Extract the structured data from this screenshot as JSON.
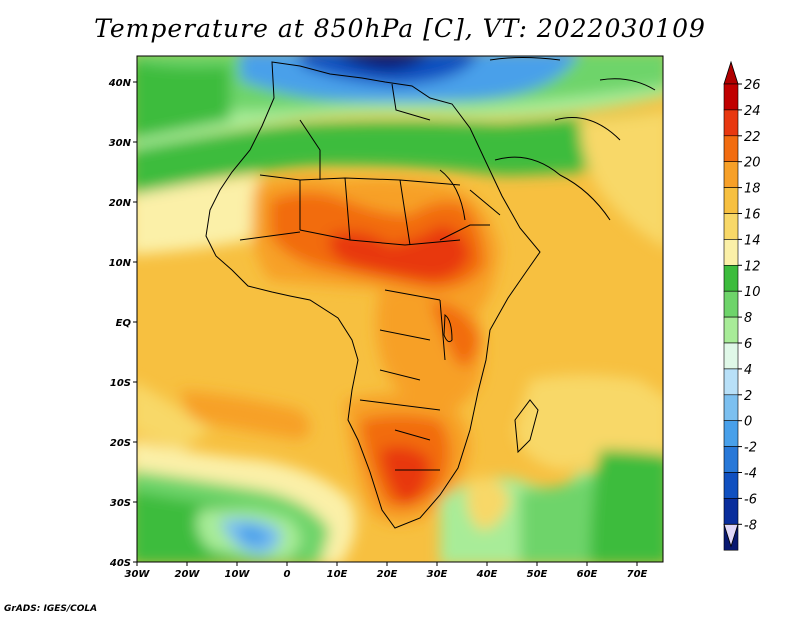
{
  "title": "Temperature at 850hPa [C], VT: 2022030109",
  "credit": "GrADS: IGES/COLA",
  "map": {
    "region": "Africa",
    "variable": "Temperature at 850hPa",
    "units": "C",
    "lon_range": [
      -30,
      75
    ],
    "lat_range": [
      -40,
      45
    ],
    "x_ticks": [
      "30W",
      "20W",
      "10W",
      "0",
      "10E",
      "20E",
      "30E",
      "40E",
      "50E",
      "60E",
      "70E"
    ],
    "y_ticks": [
      "40N",
      "30N",
      "20N",
      "10N",
      "EQ",
      "10S",
      "20S",
      "30S",
      "40S"
    ]
  },
  "legend": {
    "labels": [
      "26",
      "24",
      "22",
      "20",
      "18",
      "16",
      "14",
      "12",
      "10",
      "8",
      "6",
      "4",
      "2",
      "0",
      "-2",
      "-4",
      "-6",
      "-8"
    ],
    "colors": [
      "#c00000",
      "#e83810",
      "#f26c10",
      "#f7a028",
      "#f7c040",
      "#f8d868",
      "#fbf0a8",
      "#3cbc3c",
      "#6ed46a",
      "#a8ec98",
      "#e0f8e8",
      "#b8e0f8",
      "#7cc0f0",
      "#48a0ea",
      "#2878d8",
      "#1050c0",
      "#0a2e9c",
      "#081870"
    ],
    "top_arrow_color": "#b00000",
    "bottom_arrow_color": "#e0d8f8"
  }
}
